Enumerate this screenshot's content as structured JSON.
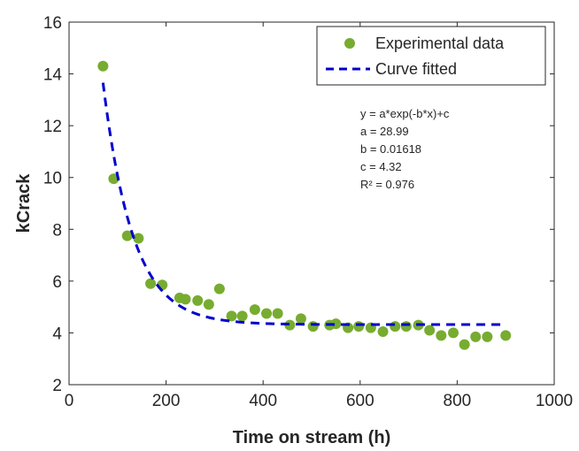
{
  "chart_data": {
    "type": "scatter",
    "title": "",
    "xlabel": "Time on stream (h)",
    "ylabel": "kCrack",
    "xlim": [
      0,
      1000
    ],
    "ylim": [
      2,
      16
    ],
    "xticks": [
      0,
      200,
      400,
      600,
      800,
      1000
    ],
    "yticks": [
      2,
      4,
      6,
      8,
      10,
      12,
      14,
      16
    ],
    "grid": false,
    "legend_position": "top-right",
    "colors": {
      "points": "#77ac30",
      "curve": "#0000cc"
    },
    "series": [
      {
        "name": "Experimental data",
        "kind": "scatter",
        "x": [
          70,
          92,
          120,
          143,
          168,
          192,
          228,
          240,
          265,
          288,
          310,
          335,
          357,
          383,
          407,
          430,
          455,
          478,
          503,
          537,
          550,
          575,
          597,
          622,
          647,
          672,
          695,
          720,
          743,
          767,
          792,
          815,
          838,
          862,
          900
        ],
        "y": [
          14.3,
          9.95,
          7.75,
          7.65,
          5.9,
          5.85,
          5.35,
          5.3,
          5.25,
          5.1,
          5.7,
          4.65,
          4.65,
          4.9,
          4.75,
          4.75,
          4.3,
          4.55,
          4.25,
          4.3,
          4.35,
          4.2,
          4.25,
          4.2,
          4.05,
          4.25,
          4.25,
          4.3,
          4.1,
          3.9,
          4.0,
          3.55,
          3.85,
          3.85,
          3.9
        ]
      },
      {
        "name": "Curve fitted",
        "kind": "line",
        "style": "dashed",
        "fit": {
          "a": 28.99,
          "b": 0.01618,
          "c": 4.32
        },
        "x_range": [
          70,
          900
        ]
      }
    ],
    "annotation": {
      "lines": [
        "y = a*exp(-b*x)+c",
        "a = 28.99",
        "b = 0.01618",
        "c = 4.32",
        "R² = 0.976"
      ]
    }
  }
}
